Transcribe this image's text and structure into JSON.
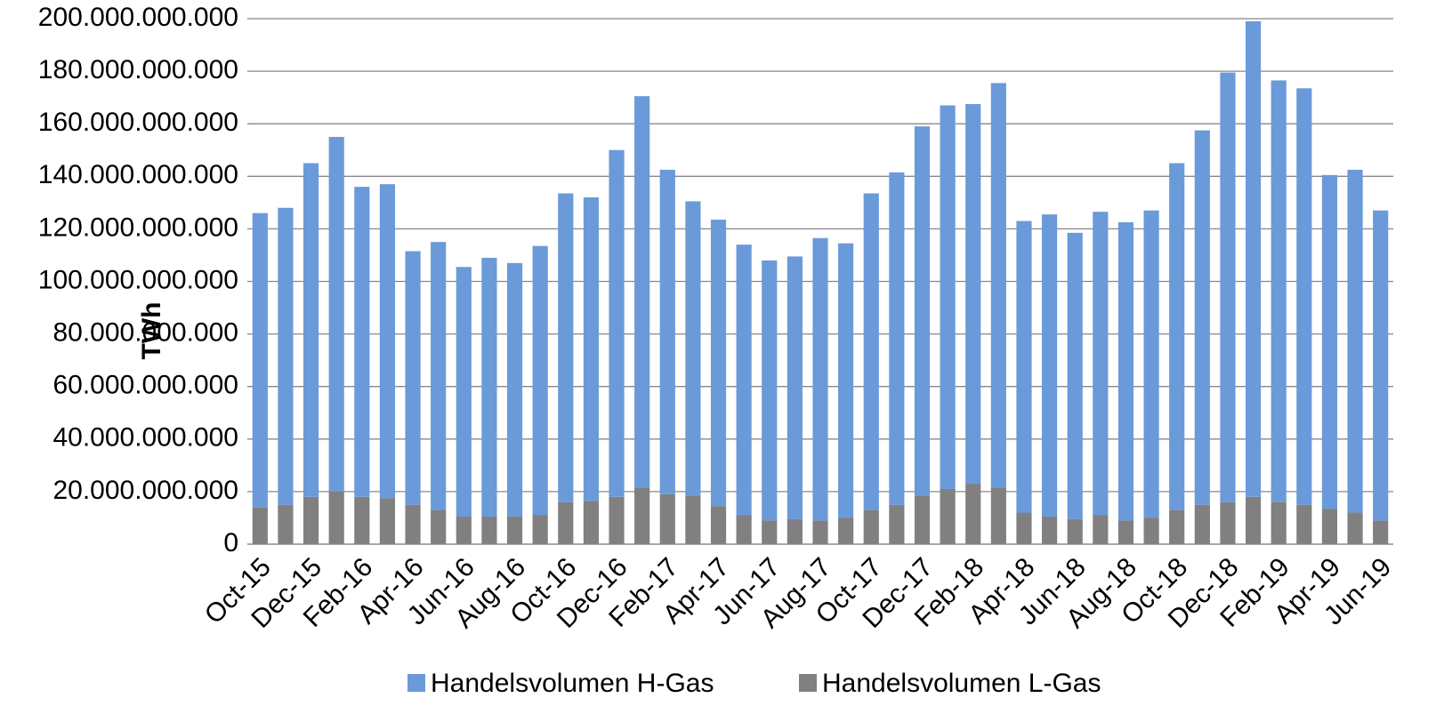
{
  "chart_data": {
    "type": "bar",
    "stacked": true,
    "ylabel": "TWh",
    "categories": [
      "Oct-15",
      null,
      "Dec-15",
      null,
      "Feb-16",
      null,
      "Apr-16",
      null,
      "Jun-16",
      null,
      "Aug-16",
      null,
      "Oct-16",
      null,
      "Dec-16",
      null,
      "Feb-17",
      null,
      "Apr-17",
      null,
      "Jun-17",
      null,
      "Aug-17",
      null,
      "Oct-17",
      null,
      "Dec-17",
      null,
      "Feb-18",
      null,
      "Apr-18",
      null,
      "Jun-18",
      null,
      "Aug-18",
      null,
      "Oct-18",
      null,
      "Dec-18",
      null,
      "Feb-19",
      null,
      "Apr-19",
      null,
      "Jun-19"
    ],
    "series": [
      {
        "name": "Handelsvolumen L-Gas",
        "color": "#808080",
        "values": [
          14000000000,
          15000000000,
          18000000000,
          20000000000,
          18000000000,
          17500000000,
          15000000000,
          13000000000,
          10500000000,
          10500000000,
          10500000000,
          11000000000,
          16000000000,
          16500000000,
          18000000000,
          21500000000,
          19000000000,
          18500000000,
          14500000000,
          11000000000,
          9000000000,
          9500000000,
          9000000000,
          10000000000,
          13000000000,
          15000000000,
          18500000000,
          21000000000,
          23000000000,
          21500000000,
          12000000000,
          10500000000,
          9500000000,
          11000000000,
          9000000000,
          10000000000,
          13000000000,
          15000000000,
          16000000000,
          18000000000,
          16000000000,
          15000000000,
          13500000000,
          12000000000,
          9000000000
        ]
      },
      {
        "name": "Handelsvolumen H-Gas",
        "color": "#6a9ad9",
        "values": [
          112000000000,
          113000000000,
          127000000000,
          135000000000,
          118000000000,
          119500000000,
          96500000000,
          102000000000,
          95000000000,
          98500000000,
          96500000000,
          102500000000,
          117500000000,
          115500000000,
          132000000000,
          149000000000,
          123500000000,
          112000000000,
          109000000000,
          103000000000,
          99000000000,
          100000000000,
          107500000000,
          104500000000,
          120500000000,
          126500000000,
          140500000000,
          146000000000,
          144500000000,
          154000000000,
          111000000000,
          115000000000,
          109000000000,
          115500000000,
          113500000000,
          117000000000,
          132000000000,
          142500000000,
          163500000000,
          181000000000,
          160500000000,
          158500000000,
          127000000000,
          130500000000,
          118000000000
        ]
      }
    ],
    "legend_order": [
      1,
      0
    ],
    "ylim": [
      0,
      200000000000
    ],
    "yticks": [
      0,
      {
        "value": 20000000000,
        "label": "20.000.000.000"
      },
      {
        "value": 40000000000,
        "label": "40.000.000.000"
      },
      {
        "value": 60000000000,
        "label": "60.000.000.000"
      },
      {
        "value": 80000000000,
        "label": "80.000.000.000"
      },
      {
        "value": 100000000000,
        "label": "100.000.000.000"
      },
      {
        "value": 120000000000,
        "label": "120.000.000.000"
      },
      {
        "value": 140000000000,
        "label": "140.000.000.000"
      },
      {
        "value": 160000000000,
        "label": "160.000.000.000"
      },
      {
        "value": 180000000000,
        "label": "180.000.000.000"
      },
      {
        "value": 200000000000,
        "label": "200.000.000.000"
      }
    ],
    "grid": true
  }
}
